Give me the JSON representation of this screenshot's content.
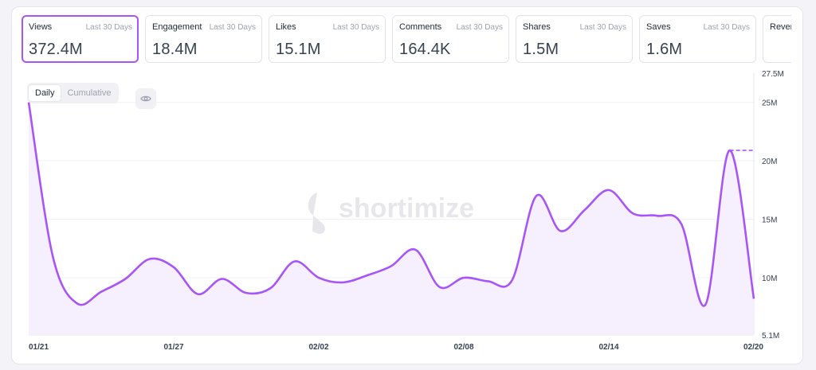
{
  "metrics": [
    {
      "label": "Views",
      "period": "Last 30 Days",
      "value": "372.4M",
      "active": true
    },
    {
      "label": "Engagement",
      "period": "Last 30 Days",
      "value": "18.4M"
    },
    {
      "label": "Likes",
      "period": "Last 30 Days",
      "value": "15.1M"
    },
    {
      "label": "Comments",
      "period": "Last 30 Days",
      "value": "164.4K"
    },
    {
      "label": "Shares",
      "period": "Last 30 Days",
      "value": "1.5M"
    },
    {
      "label": "Saves",
      "period": "Last 30 Days",
      "value": "1.6M"
    },
    {
      "label": "Revenue",
      "period": "",
      "value": ""
    }
  ],
  "toggle": {
    "daily": "Daily",
    "cumulative": "Cumulative"
  },
  "watermark": "shortimize",
  "colors": {
    "accent": "#a855f7",
    "fill": "#f5eefe"
  },
  "icons": {
    "visibility": "eye-icon"
  },
  "chart_data": {
    "type": "area",
    "x": [
      "01/21",
      "01/22",
      "01/23",
      "01/24",
      "01/25",
      "01/26",
      "01/27",
      "01/28",
      "01/29",
      "01/30",
      "01/31",
      "02/01",
      "02/02",
      "02/03",
      "02/04",
      "02/05",
      "02/06",
      "02/07",
      "02/08",
      "02/09",
      "02/10",
      "02/11",
      "02/12",
      "02/13",
      "02/14",
      "02/15",
      "02/16",
      "02/17",
      "02/18",
      "02/19",
      "02/20"
    ],
    "x_ticks": [
      "01/21",
      "01/27",
      "02/02",
      "02/08",
      "02/14",
      "02/20"
    ],
    "y_ticks": [
      "27.5M",
      "25M",
      "20M",
      "15M",
      "10M",
      "5.1M"
    ],
    "y_tick_values": [
      27.5,
      25,
      20,
      15,
      10,
      5.1
    ],
    "ylim": [
      5.1,
      27.5
    ],
    "series": [
      {
        "values": [
          25.0,
          11.8,
          7.8,
          8.8,
          9.9,
          11.6,
          10.9,
          8.6,
          9.9,
          8.7,
          9.1,
          11.4,
          10.0,
          9.6,
          10.2,
          11.0,
          12.4,
          9.2,
          10.0,
          9.7,
          9.8,
          17.0,
          14.0,
          15.8,
          17.5,
          15.5,
          15.3,
          14.6,
          7.7,
          20.9,
          8.2
        ]
      }
    ],
    "dashed_reference": {
      "from": "02/19",
      "to": "02/20",
      "value": 20.9
    }
  }
}
